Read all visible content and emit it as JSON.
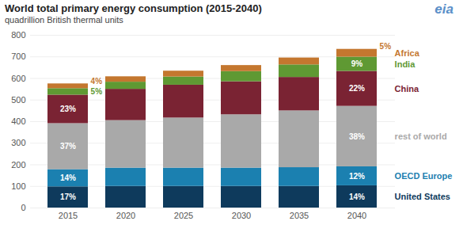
{
  "chart_data": {
    "type": "bar",
    "title": "World total primary energy consumption (2015-2040)",
    "subtitle": "quadrillion British thermal units",
    "logo": "eia",
    "stacked": true,
    "grid": true,
    "categories": [
      "2015",
      "2020",
      "2025",
      "2030",
      "2035",
      "2040"
    ],
    "ylim": [
      0,
      800
    ],
    "yticks": [
      0,
      100,
      200,
      300,
      400,
      500,
      600,
      700,
      800
    ],
    "series": [
      {
        "name": "United States",
        "color": "#0e3a5c",
        "values": [
          98,
          100,
          100,
          100,
          100,
          103
        ],
        "share_labels": [
          "17%",
          null,
          null,
          null,
          null,
          "14%"
        ]
      },
      {
        "name": "OECD Europe",
        "color": "#1b80b0",
        "values": [
          80,
          85,
          85,
          85,
          87,
          88
        ],
        "share_labels": [
          "14%",
          null,
          null,
          null,
          null,
          "12%"
        ]
      },
      {
        "name": "rest of world",
        "color": "#a9a9a9",
        "values": [
          213,
          220,
          232,
          247,
          263,
          280
        ],
        "share_labels": [
          "37%",
          null,
          null,
          null,
          null,
          "38%"
        ]
      },
      {
        "name": "China",
        "color": "#7a2333",
        "values": [
          132,
          145,
          152,
          153,
          155,
          162
        ],
        "share_labels": [
          "23%",
          null,
          null,
          null,
          null,
          "22%"
        ]
      },
      {
        "name": "India",
        "color": "#5f9933",
        "values": [
          30,
          33,
          38,
          47,
          58,
          66
        ],
        "share_labels": [
          "5%",
          null,
          null,
          null,
          null,
          "9%"
        ]
      },
      {
        "name": "Africa",
        "color": "#c4772f",
        "values": [
          22,
          25,
          27,
          28,
          32,
          36
        ],
        "share_labels": [
          "4%",
          null,
          null,
          null,
          null,
          "5%"
        ]
      }
    ]
  }
}
